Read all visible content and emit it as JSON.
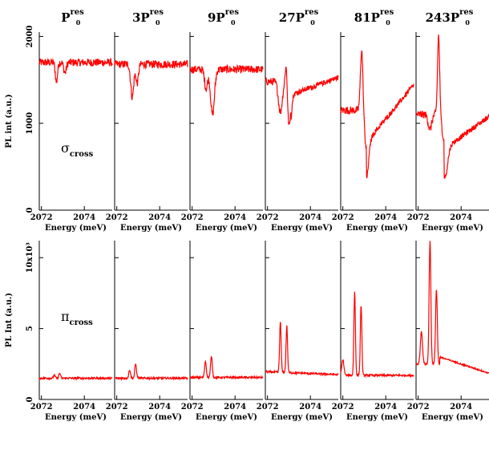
{
  "chart_data": {
    "type": "line",
    "line_color": "#ff0000",
    "x_ticks": [
      "2072",
      "2074"
    ],
    "x_range": [
      2071.9,
      2075.3
    ],
    "xlabel": "Energy (meV)",
    "rows": [
      {
        "ylabel": "PL int (a.u.)",
        "ylim": [
          0,
          2050
        ],
        "y_ticks": [
          "0",
          "1000",
          "2000"
        ],
        "annotation": {
          "symbol": "σ",
          "sub": "cross"
        },
        "panels": [
          {
            "title": {
              "main": "P",
              "sup": "res",
              "sub": "0"
            },
            "base": 1700,
            "features": [
              {
                "x": 2072.7,
                "a": -230,
                "w": 0.05
              },
              {
                "x": 2073.1,
                "a": -120,
                "w": 0.06
              }
            ]
          },
          {
            "title": {
              "main": "3P",
              "sup": "res",
              "sub": "0"
            },
            "base": 1680,
            "features": [
              {
                "x": 2072.72,
                "a": -380,
                "w": 0.07
              },
              {
                "x": 2072.95,
                "a": -220,
                "w": 0.06
              }
            ]
          },
          {
            "title": {
              "main": "9P",
              "sup": "res",
              "sub": "0"
            },
            "base": 1620,
            "features": [
              {
                "x": 2072.65,
                "a": -220,
                "w": 0.07
              },
              {
                "x": 2072.95,
                "a": -520,
                "w": 0.09
              }
            ]
          },
          {
            "title": {
              "main": "27P",
              "sup": "res",
              "sub": "0"
            },
            "base": 1480,
            "features": [
              {
                "x": 2072.6,
                "a": -350,
                "w": 0.09
              },
              {
                "x": 2072.88,
                "a": 350,
                "w": 0.05
              },
              {
                "x": 2073.0,
                "a": -520,
                "w": 0.09
              }
            ]
          },
          {
            "title": {
              "main": "81P",
              "sup": "res",
              "sub": "0"
            },
            "base": 1150,
            "features": [
              {
                "x": 2072.88,
                "a": 720,
                "w": 0.06
              },
              {
                "x": 2073.1,
                "a": -420,
                "w": 0.1
              }
            ]
          },
          {
            "title": {
              "main": "243P",
              "sup": "res",
              "sub": "0"
            },
            "base": 1100,
            "features": [
              {
                "x": 2072.55,
                "a": -170,
                "w": 0.08
              },
              {
                "x": 2072.95,
                "a": 920,
                "w": 0.05
              },
              {
                "x": 2073.25,
                "a": -330,
                "w": 0.12
              }
            ]
          }
        ]
      },
      {
        "ylabel": "PL Int (a.u.)",
        "ylim": [
          0,
          11200
        ],
        "y_ticks": [
          "0",
          "5",
          "10x10³"
        ],
        "annotation": {
          "symbol": "π",
          "sub": "cross"
        },
        "panels": [
          {
            "base": 1500,
            "features": [
              {
                "x": 2072.6,
                "a": 200,
                "w": 0.04
              },
              {
                "x": 2072.85,
                "a": 350,
                "w": 0.04
              }
            ]
          },
          {
            "base": 1500,
            "features": [
              {
                "x": 2072.6,
                "a": 600,
                "w": 0.04
              },
              {
                "x": 2072.88,
                "a": 1000,
                "w": 0.04
              }
            ]
          },
          {
            "base": 1550,
            "features": [
              {
                "x": 2072.62,
                "a": 1150,
                "w": 0.04
              },
              {
                "x": 2072.9,
                "a": 1500,
                "w": 0.04
              }
            ]
          },
          {
            "base": 1950,
            "features": [
              {
                "x": 2072.6,
                "a": 3600,
                "w": 0.035
              },
              {
                "x": 2072.9,
                "a": 3300,
                "w": 0.035
              }
            ]
          },
          {
            "base": 1700,
            "features": [
              {
                "x": 2072.0,
                "a": 1100,
                "w": 0.05
              },
              {
                "x": 2072.55,
                "a": 5900,
                "w": 0.035
              },
              {
                "x": 2072.85,
                "a": 5000,
                "w": 0.035
              }
            ]
          },
          {
            "base": 2500,
            "features": [
              {
                "x": 2072.15,
                "a": 2300,
                "w": 0.05
              },
              {
                "x": 2072.55,
                "a": 8700,
                "w": 0.04
              },
              {
                "x": 2072.85,
                "a": 5300,
                "w": 0.04
              }
            ]
          }
        ]
      }
    ]
  }
}
